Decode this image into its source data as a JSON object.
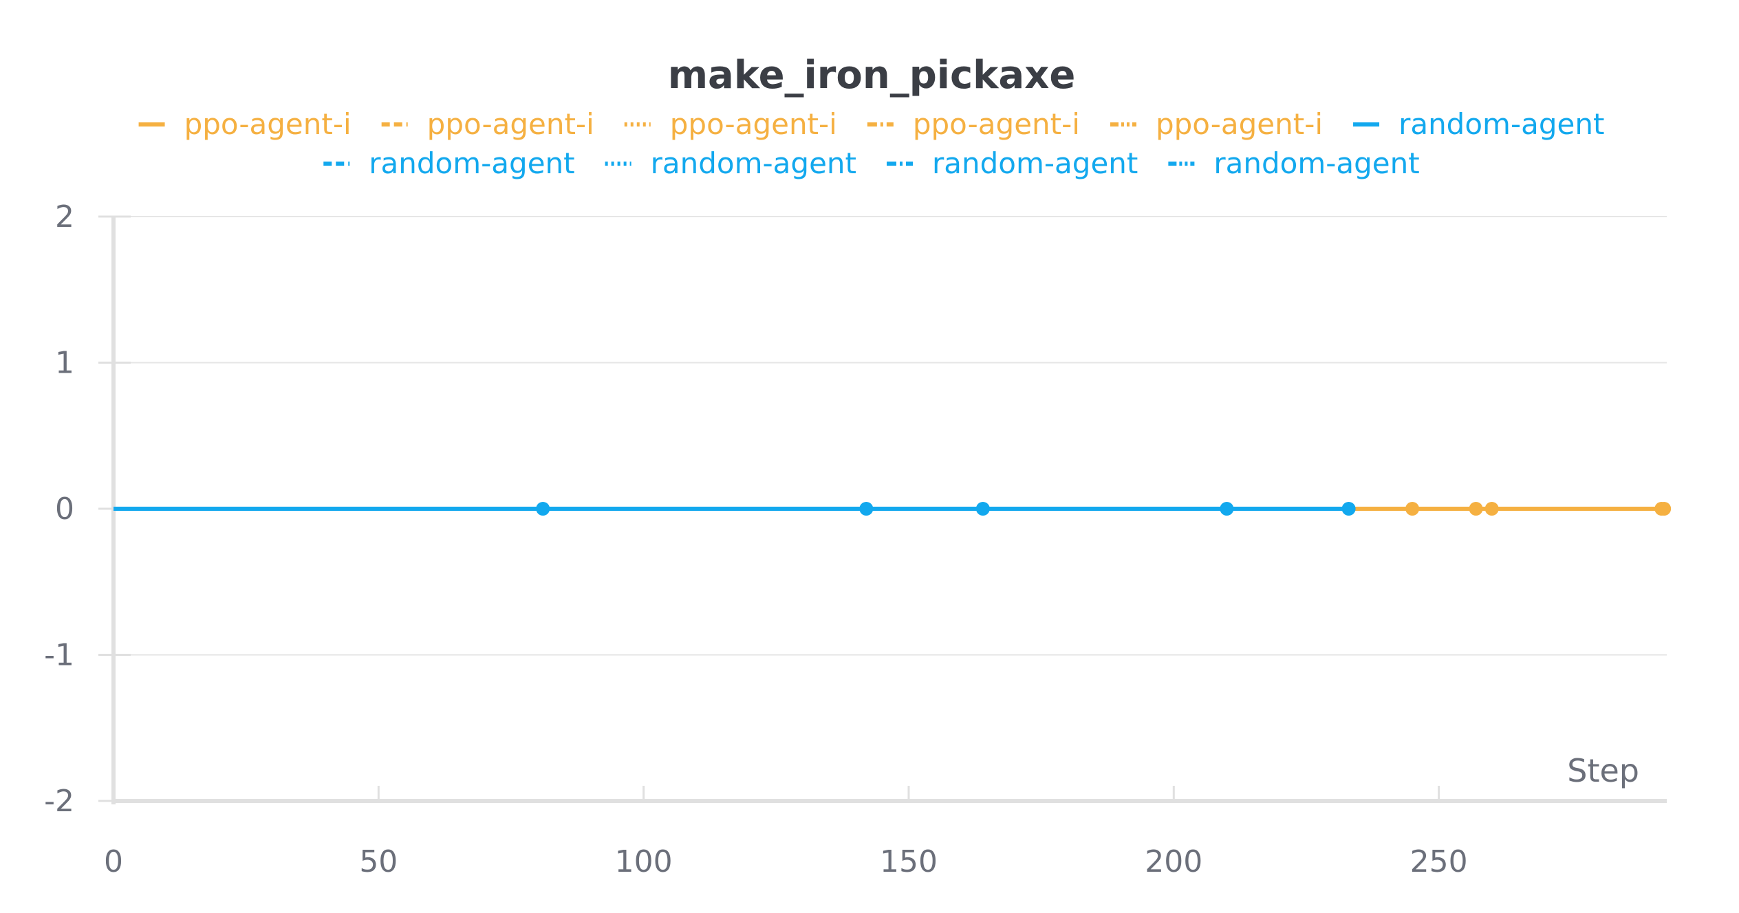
{
  "colors": {
    "ppo": "#f5b041",
    "random": "#12a8ee",
    "grid": "#e6e6e6",
    "axis": "#e0e0e0",
    "tick_text": "#6b6f7a",
    "title_text": "#3b3e45"
  },
  "chart_data": {
    "type": "line",
    "title": "make_iron_pickaxe",
    "xlabel": "Step",
    "ylabel": "",
    "xlim": [
      0,
      293
    ],
    "ylim": [
      -2,
      2
    ],
    "x_ticks": [
      "0",
      "50",
      "100",
      "150",
      "200",
      "250"
    ],
    "y_ticks": [
      "2",
      "1",
      "0",
      "-1",
      "-2"
    ],
    "grid": true,
    "legend_position": "top-center",
    "legend": [
      {
        "label": "ppo-agent-i",
        "color": "ppo",
        "style": "solid"
      },
      {
        "label": "ppo-agent-i",
        "color": "ppo",
        "style": "dashed"
      },
      {
        "label": "ppo-agent-i",
        "color": "ppo",
        "style": "dotted"
      },
      {
        "label": "ppo-agent-i",
        "color": "ppo",
        "style": "dashdot"
      },
      {
        "label": "ppo-agent-i",
        "color": "ppo",
        "style": "dashdotdot"
      },
      {
        "label": "random-agent",
        "color": "random",
        "style": "solid"
      },
      {
        "label": "random-agent",
        "color": "random",
        "style": "dashed"
      },
      {
        "label": "random-agent",
        "color": "random",
        "style": "dotted"
      },
      {
        "label": "random-agent",
        "color": "random",
        "style": "dashdot"
      },
      {
        "label": "random-agent",
        "color": "random",
        "style": "dashdotdot"
      }
    ],
    "series": [
      {
        "name": "ppo-agent-i",
        "color": "ppo",
        "style": "solid",
        "x": [
          0,
          292
        ],
        "y": [
          0,
          0
        ],
        "end_x": 292
      },
      {
        "name": "ppo-agent-i",
        "color": "ppo",
        "style": "dashed",
        "x": [
          0,
          257
        ],
        "y": [
          0,
          0
        ],
        "end_x": 257
      },
      {
        "name": "ppo-agent-i",
        "color": "ppo",
        "style": "dotted",
        "x": [
          0,
          260
        ],
        "y": [
          0,
          0
        ],
        "end_x": 260
      },
      {
        "name": "ppo-agent-i",
        "color": "ppo",
        "style": "dashdot",
        "x": [
          0,
          245
        ],
        "y": [
          0,
          0
        ],
        "end_x": 245
      },
      {
        "name": "ppo-agent-i",
        "color": "ppo",
        "style": "dashdotdot",
        "x": [
          0,
          292.5
        ],
        "y": [
          0,
          0
        ],
        "end_x": 292.5
      },
      {
        "name": "random-agent",
        "color": "random",
        "style": "solid",
        "x": [
          0,
          233
        ],
        "y": [
          0,
          0
        ],
        "end_x": 233
      },
      {
        "name": "random-agent",
        "color": "random",
        "style": "dashed",
        "x": [
          0,
          210
        ],
        "y": [
          0,
          0
        ],
        "end_x": 210
      },
      {
        "name": "random-agent",
        "color": "random",
        "style": "dotted",
        "x": [
          0,
          164
        ],
        "y": [
          0,
          0
        ],
        "end_x": 164
      },
      {
        "name": "random-agent",
        "color": "random",
        "style": "dashdot",
        "x": [
          0,
          142
        ],
        "y": [
          0,
          0
        ],
        "end_x": 142
      },
      {
        "name": "random-agent",
        "color": "random",
        "style": "dashdotdot",
        "x": [
          0,
          81
        ],
        "y": [
          0,
          0
        ],
        "end_x": 81
      }
    ]
  }
}
